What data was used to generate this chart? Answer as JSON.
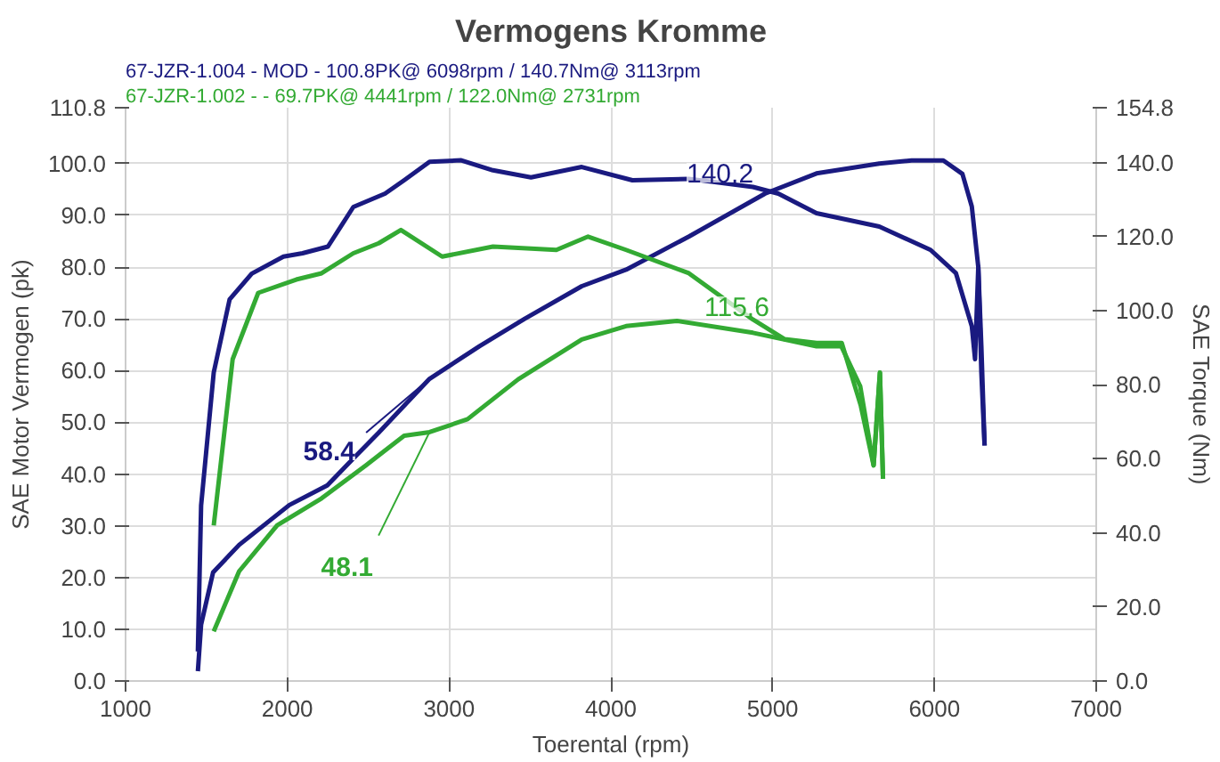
{
  "chart_data": {
    "type": "line",
    "title": "Vermogens Kromme",
    "annotations": [
      "67-JZR-1.004 - MOD  - 100.8PK@ 6098rpm / 140.7Nm@ 3113rpm",
      "67-JZR-1.002 -  - 69.7PK@ 4441rpm / 122.0Nm@ 2731rpm",
      "140.2",
      "115.6",
      {
        "text": "58.4",
        "x": 2879,
        "y": 58.4
      },
      {
        "text": "48.1",
        "x": 2879,
        "y": 48.1
      }
    ],
    "xlabel": "Toerental (rpm)",
    "ylabel": "SAE Motor Vermogen (pk)",
    "y2label": "SAE Torque (Nm)",
    "xlim": [
      1000,
      7000
    ],
    "xticks": [
      1000,
      2000,
      3000,
      4000,
      5000,
      6000,
      7000
    ],
    "ylim": [
      0,
      110.8
    ],
    "yticks": [
      {
        "value": 0,
        "label": "0.0"
      },
      {
        "value": 10,
        "label": "10.0"
      },
      {
        "value": 20,
        "label": "20.0"
      },
      {
        "value": 30,
        "label": "30.0"
      },
      {
        "value": 40,
        "label": "40.0"
      },
      {
        "value": 50,
        "label": "50.0"
      },
      {
        "value": 60,
        "label": "60.0"
      },
      {
        "value": 70,
        "label": "70.0"
      },
      {
        "value": 80,
        "label": "80.0"
      },
      {
        "value": 90,
        "label": "90.0"
      },
      {
        "value": 100,
        "label": "100.0"
      },
      110.8
    ],
    "y2lim": [
      0,
      154.8
    ],
    "y2ticks": [
      {
        "value": 0,
        "label": "0.0"
      },
      {
        "value": 20,
        "label": "20.0"
      },
      {
        "value": 40,
        "label": "40.0"
      },
      {
        "value": 60,
        "label": "60.0"
      },
      {
        "value": 80,
        "label": "80.0"
      },
      {
        "value": 100,
        "label": "100.0"
      },
      {
        "value": 120,
        "label": "120.0"
      },
      {
        "value": 140,
        "label": "140.0"
      },
      154.8
    ],
    "grid": true,
    "marker": "none",
    "line_style": "solid",
    "series": [
      {
        "color": "#1a1a80",
        "x": [
          1447,
          1467,
          1541,
          1702,
          2012,
          2247,
          2408,
          2565,
          2879,
          3188,
          3467,
          3820,
          4094,
          4482,
          4953,
          5271,
          5659,
          5859,
          6055,
          6173,
          6231,
          6271,
          6290,
          6310
        ],
        "values": [
          1.9,
          10.9,
          21,
          26.3,
          34,
          37.8,
          43,
          48,
          58.4,
          64.7,
          70,
          76.3,
          79.5,
          85.9,
          94.2,
          98.1,
          100,
          100.6,
          100.6,
          98,
          91.7,
          80,
          64.7,
          45.5
        ]
      },
      {
        "color": "#1a1a80",
        "axis": "y2",
        "x": [
          1447,
          1467,
          1545,
          1643,
          1780,
          1976,
          2094,
          2251,
          2408,
          2604,
          2722,
          2879,
          3075,
          3271,
          3506,
          3820,
          4133,
          4482,
          4878,
          5035,
          5271,
          5659,
          5976,
          6133,
          6231,
          6251,
          6271,
          6290,
          6310
        ],
        "values": [
          8,
          47.4,
          83.3,
          103,
          110,
          114.6,
          115.5,
          117.3,
          128,
          131.6,
          135.2,
          140.2,
          140.6,
          137.9,
          136,
          138.8,
          135.2,
          135.6,
          133.4,
          131.6,
          126.3,
          122.7,
          116.4,
          110.1,
          95.8,
          86.9,
          111.9,
          83.3,
          63.6
        ]
      },
      {
        "color": "#33aa33",
        "x": [
          1545,
          1702,
          1937,
          2212,
          2486,
          2722,
          2879,
          3114,
          3427,
          3820,
          4094,
          4408,
          4878,
          5271,
          5424,
          5541,
          5624,
          5663,
          5682
        ],
        "values": [
          9.6,
          21.2,
          30.1,
          35.3,
          41.7,
          47.4,
          48.1,
          50.6,
          58.3,
          66,
          68.6,
          69.6,
          67.3,
          64.7,
          64.7,
          57,
          41.7,
          59.6,
          39.1
        ]
      },
      {
        "color": "#33aa33",
        "axis": "y2",
        "x": [
          1545,
          1662,
          1820,
          2055,
          2212,
          2408,
          2565,
          2702,
          2957,
          3271,
          3663,
          3859,
          4094,
          4482,
          4878,
          5075,
          5271,
          5427,
          5545,
          5624,
          5663,
          5682
        ],
        "values": [
          42,
          86.9,
          104.8,
          108.4,
          110.1,
          115.5,
          118.2,
          121.8,
          114.6,
          117.3,
          116.4,
          120,
          116.4,
          110.1,
          97.6,
          92.3,
          91.3,
          91.3,
          74.3,
          58.2,
          83.3,
          54.6
        ]
      }
    ]
  }
}
